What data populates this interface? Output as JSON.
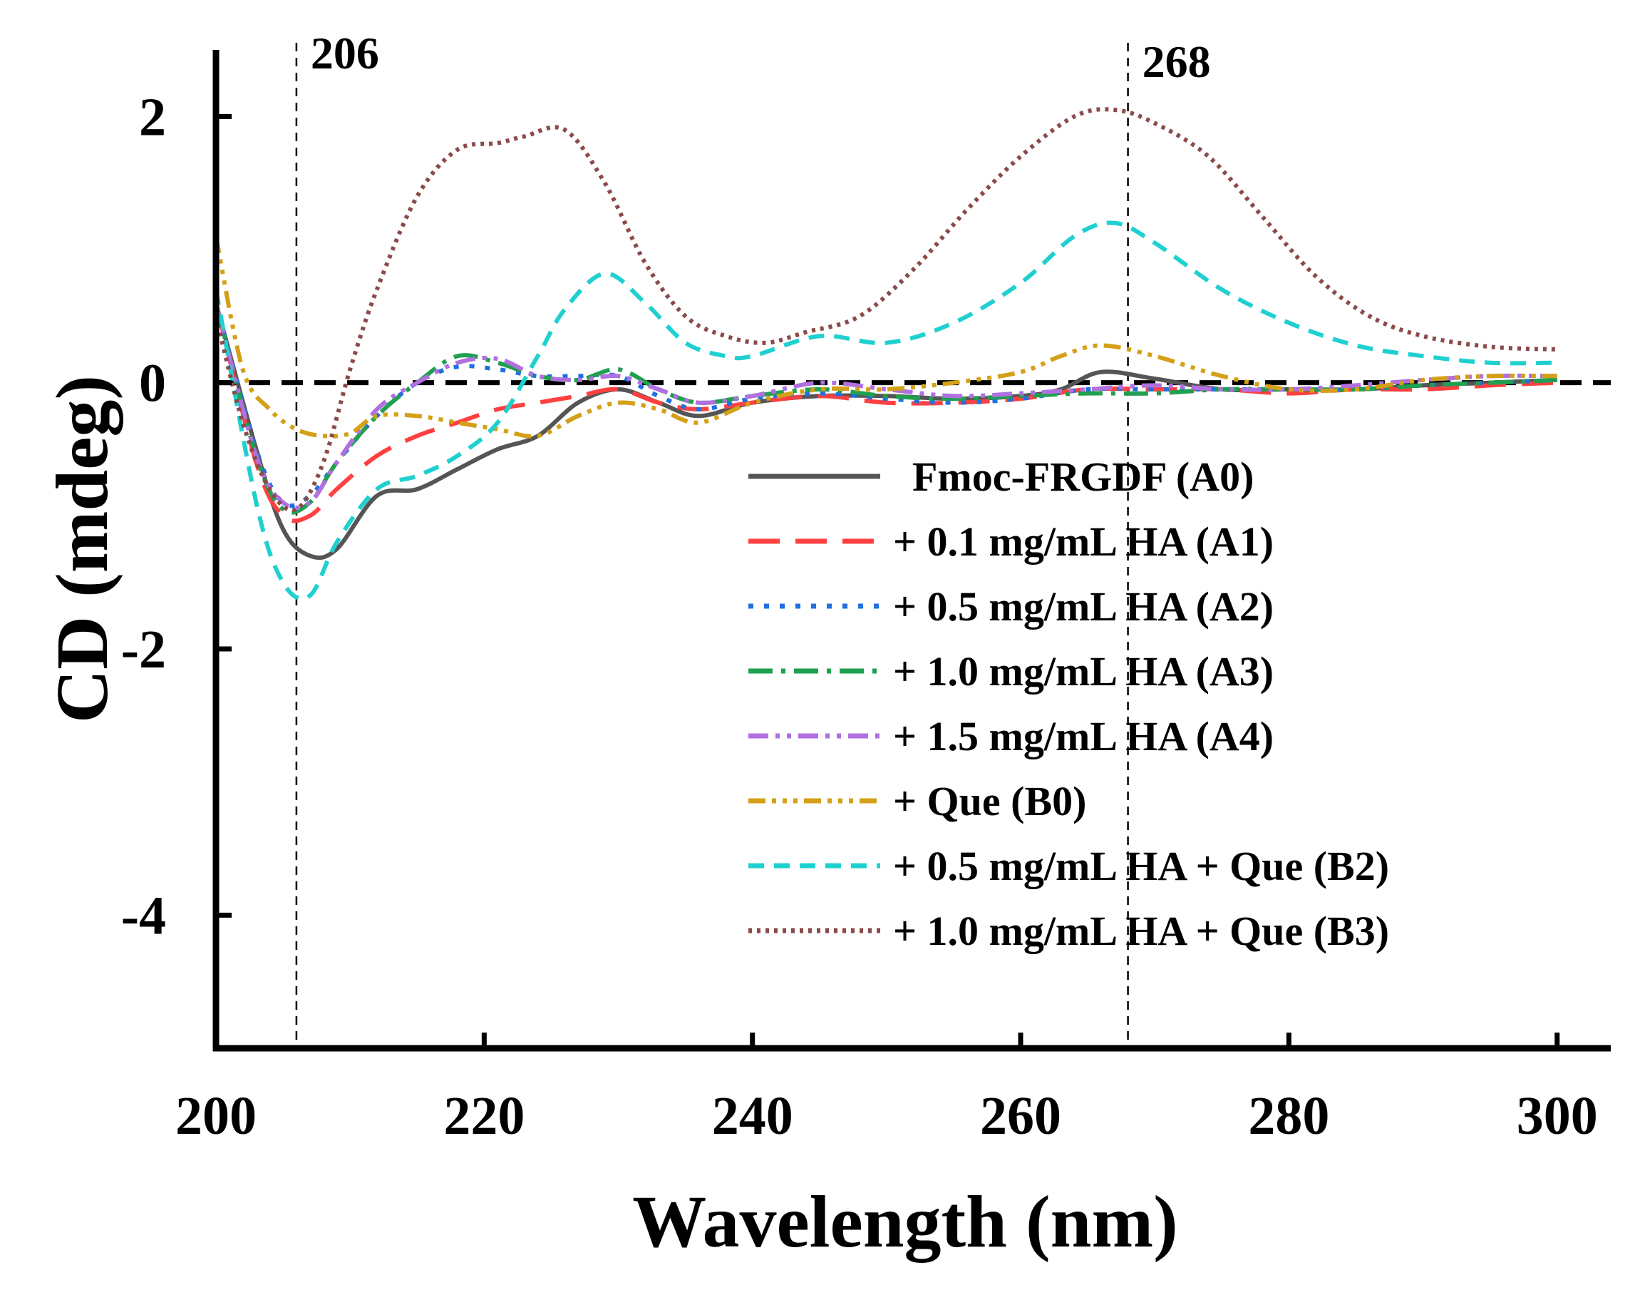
{
  "chart_data": {
    "type": "line",
    "title": "",
    "xlabel": "Wavelength (nm)",
    "ylabel": "CD (mdeg)",
    "xlim": [
      200,
      304
    ],
    "ylim": [
      -5,
      2.5
    ],
    "xticks": [
      200,
      220,
      240,
      260,
      280,
      300
    ],
    "yticks": [
      -4,
      -2,
      0,
      2
    ],
    "xtick_labels": [
      "200",
      "220",
      "240",
      "260",
      "280",
      "300"
    ],
    "ytick_labels": [
      "-4",
      "-2",
      "0",
      "2"
    ],
    "legend_position": "lower-right inside plot",
    "zero_line": {
      "y": 0,
      "style": "dashed",
      "color": "#000000"
    },
    "annotations": [
      {
        "x": 206,
        "label": "206",
        "style": "dashed vertical"
      },
      {
        "x": 268,
        "label": "268",
        "style": "dashed vertical"
      }
    ],
    "series": [
      {
        "name": "Fmoc-FRGDF (A0)",
        "color": "#555555",
        "dash": "solid",
        "x": [
          200,
          203,
          205,
          207,
          209,
          212,
          215,
          218,
          221,
          224,
          227,
          230,
          233,
          236,
          240,
          245,
          250,
          255,
          260,
          263,
          266,
          270,
          275,
          280,
          285,
          290,
          295,
          300
        ],
        "y": [
          0.6,
          -0.5,
          -1.1,
          -1.3,
          -1.25,
          -0.85,
          -0.8,
          -0.65,
          -0.5,
          -0.4,
          -0.15,
          -0.05,
          -0.15,
          -0.25,
          -0.15,
          -0.1,
          -0.1,
          -0.12,
          -0.1,
          -0.05,
          0.08,
          0.03,
          -0.05,
          -0.05,
          -0.05,
          -0.02,
          0.0,
          0.02
        ]
      },
      {
        "name": "+ 0.1 mg/mL HA (A1)",
        "color": "#ff4040",
        "dash": "long-dash",
        "x": [
          200,
          203,
          205,
          207,
          209,
          212,
          215,
          218,
          221,
          224,
          227,
          230,
          233,
          236,
          240,
          245,
          250,
          255,
          260,
          265,
          270,
          275,
          280,
          285,
          290,
          295,
          300
        ],
        "y": [
          0.6,
          -0.6,
          -1.0,
          -1.0,
          -0.8,
          -0.55,
          -0.4,
          -0.3,
          -0.2,
          -0.15,
          -0.1,
          -0.05,
          -0.15,
          -0.2,
          -0.15,
          -0.1,
          -0.15,
          -0.15,
          -0.12,
          -0.05,
          -0.05,
          -0.05,
          -0.08,
          -0.05,
          -0.05,
          -0.02,
          0.0
        ]
      },
      {
        "name": "+ 0.5 mg/mL HA (A2)",
        "color": "#2070e0",
        "dash": "dotted",
        "x": [
          200,
          203,
          205,
          207,
          209,
          212,
          215,
          218,
          221,
          224,
          227,
          230,
          233,
          236,
          240,
          245,
          250,
          255,
          260,
          265,
          270,
          275,
          280,
          285,
          290,
          295,
          300
        ],
        "y": [
          0.6,
          -0.5,
          -0.9,
          -0.85,
          -0.6,
          -0.25,
          0.0,
          0.12,
          0.1,
          0.05,
          0.05,
          0.05,
          -0.1,
          -0.2,
          -0.12,
          -0.08,
          -0.12,
          -0.15,
          -0.12,
          -0.05,
          -0.05,
          -0.05,
          -0.05,
          -0.05,
          -0.02,
          0.0,
          0.02
        ]
      },
      {
        "name": "+ 1.0 mg/mL HA (A3)",
        "color": "#20a050",
        "dash": "dash-dot",
        "x": [
          200,
          203,
          205,
          207,
          209,
          212,
          215,
          218,
          221,
          224,
          227,
          230,
          233,
          236,
          240,
          245,
          250,
          255,
          260,
          265,
          270,
          275,
          280,
          285,
          290,
          295,
          300
        ],
        "y": [
          0.6,
          -0.55,
          -0.95,
          -0.9,
          -0.6,
          -0.25,
          0.0,
          0.2,
          0.15,
          0.05,
          0.02,
          0.1,
          -0.05,
          -0.15,
          -0.1,
          -0.05,
          -0.1,
          -0.12,
          -0.1,
          -0.08,
          -0.08,
          -0.05,
          -0.05,
          -0.05,
          -0.02,
          0.0,
          0.02
        ]
      },
      {
        "name": "+ 1.5 mg/mL HA (A4)",
        "color": "#b070e0",
        "dash": "dash-dot-dot",
        "x": [
          200,
          203,
          205,
          207,
          209,
          212,
          215,
          218,
          221,
          224,
          227,
          230,
          233,
          236,
          240,
          245,
          250,
          255,
          260,
          265,
          270,
          275,
          280,
          285,
          290,
          295,
          300
        ],
        "y": [
          0.6,
          -0.55,
          -0.9,
          -0.9,
          -0.6,
          -0.2,
          0.0,
          0.15,
          0.18,
          0.05,
          0.02,
          0.05,
          -0.05,
          -0.15,
          -0.1,
          0.0,
          -0.05,
          -0.1,
          -0.08,
          -0.05,
          -0.02,
          -0.05,
          -0.05,
          -0.02,
          0.02,
          0.05,
          0.05
        ]
      },
      {
        "name": "+ Que (B0)",
        "color": "#d4a017",
        "dash": "dash-dot-dot-dot",
        "x": [
          200,
          202,
          204,
          206,
          208,
          210,
          212,
          215,
          218,
          221,
          224,
          227,
          230,
          233,
          236,
          240,
          245,
          250,
          255,
          260,
          263,
          266,
          270,
          275,
          280,
          285,
          290,
          295,
          300
        ],
        "y": [
          1.1,
          0.1,
          -0.2,
          -0.35,
          -0.4,
          -0.38,
          -0.25,
          -0.25,
          -0.3,
          -0.35,
          -0.4,
          -0.25,
          -0.15,
          -0.2,
          -0.3,
          -0.15,
          -0.05,
          -0.05,
          0.0,
          0.08,
          0.2,
          0.28,
          0.2,
          0.05,
          -0.05,
          -0.05,
          0.02,
          0.05,
          0.05
        ]
      },
      {
        "name": "+ 0.5 mg/mL HA + Que (B2)",
        "color": "#20d0d0",
        "dash": "short-dash",
        "x": [
          200,
          203,
          205,
          207,
          209,
          212,
          215,
          218,
          221,
          224,
          226,
          229,
          232,
          235,
          238,
          240,
          245,
          250,
          255,
          260,
          264,
          267,
          270,
          275,
          280,
          285,
          290,
          295,
          300
        ],
        "y": [
          0.7,
          -0.9,
          -1.5,
          -1.6,
          -1.2,
          -0.8,
          -0.7,
          -0.55,
          -0.3,
          0.2,
          0.55,
          0.82,
          0.6,
          0.3,
          0.2,
          0.2,
          0.35,
          0.3,
          0.45,
          0.75,
          1.1,
          1.2,
          1.05,
          0.7,
          0.45,
          0.28,
          0.2,
          0.15,
          0.15
        ]
      },
      {
        "name": "+ 1.0 mg/mL HA + Que (B3)",
        "color": "#8b4a4a",
        "dash": "fine-dotted",
        "x": [
          200,
          202,
          204,
          206,
          208,
          210,
          212,
          215,
          218,
          221,
          223,
          226,
          229,
          232,
          235,
          238,
          241,
          244,
          248,
          252,
          256,
          260,
          264,
          267,
          270,
          274,
          278,
          282,
          286,
          290,
          295,
          300
        ],
        "y": [
          0.5,
          -0.3,
          -0.8,
          -0.95,
          -0.6,
          0.1,
          0.7,
          1.4,
          1.75,
          1.8,
          1.85,
          1.9,
          1.5,
          0.9,
          0.5,
          0.35,
          0.3,
          0.38,
          0.5,
          0.85,
          1.3,
          1.7,
          2.0,
          2.05,
          1.95,
          1.7,
          1.25,
          0.8,
          0.5,
          0.35,
          0.27,
          0.25
        ]
      }
    ]
  }
}
